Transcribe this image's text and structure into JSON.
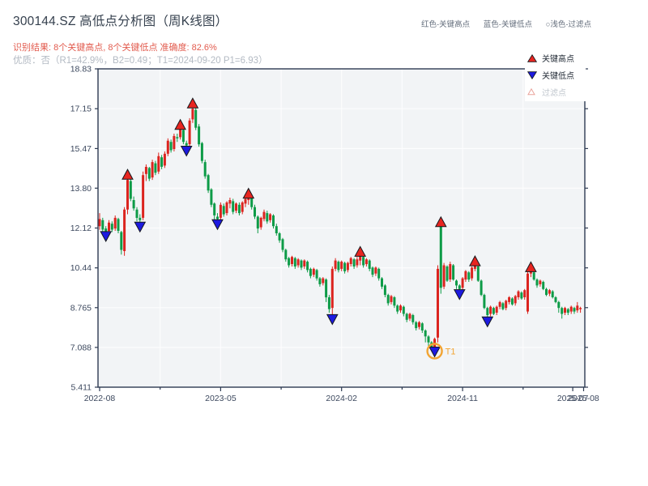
{
  "title": "300144.SZ 高低点分析图（周K线图）",
  "subtitle_result": "识别结果: 8个关键高点, 8个关键低点  准确度: 82.6%",
  "subtitle_quality": "优质：否（R1=42.9%，B2=0.49；T1=2024-09-20 P1=6.93）",
  "top_legend": {
    "high": "红色-关键高点",
    "low": "蓝色-关键低点",
    "filtered": "○浅色-过滤点"
  },
  "chart_legend": {
    "high": "关键高点",
    "low": "关键低点",
    "filtered": "过滤点"
  },
  "colors": {
    "up": "#db241f",
    "down": "#0d9b47",
    "key_high": "#e82520",
    "key_low": "#1d1ae0",
    "marker_edge": "#15181d",
    "filtered_edge": "#eaa49c",
    "t1": "#f2a433",
    "axis": "#2d3a52",
    "tick_label": "#3c485e",
    "plot_bg": "#f2f4f6",
    "grid": "#fdfdfe"
  },
  "chart_data": {
    "type": "candlestick",
    "title": "300144.SZ weekly K-line with key high/low detection",
    "x_unit": "week",
    "ylim": [
      5.411,
      18.83
    ],
    "y_ticks": [
      {
        "label": "18.83",
        "value": 18.83
      },
      {
        "label": "17.15",
        "value": 17.15
      },
      {
        "label": "15.47",
        "value": 15.47
      },
      {
        "label": "13.80",
        "value": 13.8
      },
      {
        "label": "12.12",
        "value": 12.12
      },
      {
        "label": "10.44",
        "value": 10.44
      },
      {
        "label": "8.765",
        "value": 8.765
      },
      {
        "label": "7.088",
        "value": 7.088
      },
      {
        "label": "5.411",
        "value": 5.411
      }
    ],
    "x_ticks": [
      {
        "label": "2022-08",
        "week": 0
      },
      {
        "label": "2023-05",
        "week": 39
      },
      {
        "label": "2024-02",
        "week": 78
      },
      {
        "label": "2024-11",
        "week": 117
      },
      {
        "label": "2025-07",
        "week": 152.5
      },
      {
        "label": "2025-08",
        "week": 156
      }
    ],
    "grid_weeks": [
      19.5,
      39,
      58.5,
      78,
      97.5,
      117,
      136.5
    ],
    "minor_tick_weeks": [
      19.5,
      58.5,
      97.5,
      136.5
    ],
    "candles": [
      [
        12.2,
        12.75,
        12.05,
        12.5
      ],
      [
        12.45,
        12.55,
        11.95,
        12.05
      ],
      [
        12.1,
        12.2,
        11.8,
        11.95
      ],
      [
        12.0,
        12.45,
        11.9,
        12.35
      ],
      [
        12.3,
        12.4,
        11.95,
        12.05
      ],
      [
        12.1,
        12.65,
        12.0,
        12.55
      ],
      [
        12.5,
        12.55,
        11.9,
        12.0
      ],
      [
        11.95,
        12.0,
        11.0,
        11.2
      ],
      [
        11.15,
        13.0,
        10.95,
        12.9
      ],
      [
        12.9,
        14.35,
        12.7,
        14.15
      ],
      [
        14.1,
        14.2,
        13.25,
        13.35
      ],
      [
        13.3,
        13.45,
        12.85,
        12.95
      ],
      [
        12.9,
        13.0,
        12.4,
        12.55
      ],
      [
        12.55,
        12.7,
        12.2,
        12.45
      ],
      [
        12.55,
        14.5,
        12.45,
        14.35
      ],
      [
        14.4,
        14.8,
        14.1,
        14.7
      ],
      [
        14.65,
        14.7,
        14.1,
        14.2
      ],
      [
        14.25,
        15.0,
        14.15,
        14.9
      ],
      [
        14.85,
        14.95,
        14.35,
        14.45
      ],
      [
        14.5,
        15.3,
        14.4,
        15.15
      ],
      [
        15.1,
        15.2,
        14.6,
        14.7
      ],
      [
        14.75,
        15.35,
        14.65,
        15.25
      ],
      [
        15.25,
        15.9,
        15.15,
        15.8
      ],
      [
        15.75,
        15.85,
        15.3,
        15.4
      ],
      [
        15.45,
        16.1,
        15.35,
        16.0
      ],
      [
        15.95,
        16.1,
        15.75,
        15.9
      ],
      [
        15.95,
        16.45,
        15.85,
        16.3
      ],
      [
        16.25,
        16.35,
        15.65,
        15.75
      ],
      [
        15.7,
        15.8,
        15.4,
        15.6
      ],
      [
        15.65,
        16.75,
        15.55,
        16.65
      ],
      [
        16.7,
        17.35,
        16.55,
        17.15
      ],
      [
        17.1,
        17.2,
        16.25,
        16.35
      ],
      [
        16.4,
        16.5,
        15.55,
        15.65
      ],
      [
        15.7,
        15.75,
        14.85,
        14.95
      ],
      [
        14.9,
        15.0,
        14.2,
        14.3
      ],
      [
        14.35,
        14.4,
        13.6,
        13.7
      ],
      [
        13.75,
        13.8,
        13.0,
        13.1
      ],
      [
        13.15,
        13.2,
        12.4,
        12.65
      ],
      [
        12.6,
        12.75,
        12.3,
        12.5
      ],
      [
        12.55,
        13.2,
        12.45,
        13.1
      ],
      [
        13.05,
        13.15,
        12.6,
        12.7
      ],
      [
        12.75,
        13.25,
        12.65,
        13.2
      ],
      [
        13.15,
        13.4,
        12.95,
        13.3
      ],
      [
        13.25,
        13.35,
        12.7,
        12.8
      ],
      [
        12.85,
        13.2,
        12.75,
        13.15
      ],
      [
        13.1,
        13.2,
        12.65,
        12.75
      ],
      [
        12.8,
        13.25,
        12.7,
        13.2
      ],
      [
        13.15,
        13.4,
        13.0,
        13.35
      ],
      [
        13.3,
        13.55,
        13.1,
        13.45
      ],
      [
        13.4,
        13.45,
        12.9,
        13.0
      ],
      [
        13.0,
        13.1,
        12.5,
        12.6
      ],
      [
        12.6,
        12.65,
        11.9,
        12.1
      ],
      [
        12.15,
        12.6,
        12.05,
        12.55
      ],
      [
        12.5,
        12.9,
        12.4,
        12.8
      ],
      [
        12.75,
        12.85,
        12.3,
        12.4
      ],
      [
        12.45,
        12.75,
        12.35,
        12.7
      ],
      [
        12.65,
        12.7,
        12.1,
        12.2
      ],
      [
        12.2,
        12.3,
        11.8,
        11.9
      ],
      [
        11.9,
        11.95,
        11.5,
        11.6
      ],
      [
        11.65,
        11.7,
        11.1,
        11.2
      ],
      [
        11.2,
        11.25,
        10.7,
        10.8
      ],
      [
        10.85,
        10.9,
        10.45,
        10.55
      ],
      [
        10.6,
        10.95,
        10.5,
        10.9
      ],
      [
        10.85,
        10.9,
        10.4,
        10.5
      ],
      [
        10.55,
        10.85,
        10.45,
        10.8
      ],
      [
        10.75,
        10.8,
        10.35,
        10.45
      ],
      [
        10.5,
        10.8,
        10.4,
        10.75
      ],
      [
        10.7,
        10.75,
        10.25,
        10.35
      ],
      [
        10.4,
        10.45,
        10.0,
        10.1
      ],
      [
        10.15,
        10.45,
        10.05,
        10.4
      ],
      [
        10.35,
        10.4,
        9.9,
        10.0
      ],
      [
        10.0,
        10.05,
        9.65,
        9.75
      ],
      [
        9.8,
        10.05,
        9.7,
        10.0
      ],
      [
        9.95,
        10.0,
        9.0,
        9.2
      ],
      [
        9.2,
        9.3,
        8.55,
        8.7
      ],
      [
        8.75,
        10.5,
        8.3,
        10.4
      ],
      [
        10.4,
        10.85,
        10.3,
        10.75
      ],
      [
        10.7,
        10.75,
        10.25,
        10.35
      ],
      [
        10.4,
        10.75,
        10.3,
        10.7
      ],
      [
        10.65,
        10.7,
        10.2,
        10.3
      ],
      [
        10.35,
        10.7,
        10.25,
        10.65
      ],
      [
        10.6,
        10.9,
        10.5,
        10.85
      ],
      [
        10.8,
        10.85,
        10.4,
        10.5
      ],
      [
        10.55,
        10.9,
        10.45,
        10.8
      ],
      [
        10.75,
        11.1,
        10.55,
        10.95
      ],
      [
        10.9,
        10.95,
        10.45,
        10.55
      ],
      [
        10.6,
        10.85,
        10.5,
        10.8
      ],
      [
        10.75,
        10.8,
        10.3,
        10.4
      ],
      [
        10.45,
        10.5,
        10.05,
        10.15
      ],
      [
        10.2,
        10.5,
        10.1,
        10.45
      ],
      [
        10.4,
        10.45,
        9.9,
        10.0
      ],
      [
        10.0,
        10.05,
        9.55,
        9.65
      ],
      [
        9.7,
        9.75,
        9.2,
        9.3
      ],
      [
        9.3,
        9.35,
        8.85,
        8.95
      ],
      [
        9.0,
        9.3,
        8.9,
        9.25
      ],
      [
        9.2,
        9.25,
        8.75,
        8.85
      ],
      [
        8.85,
        8.9,
        8.5,
        8.6
      ],
      [
        8.65,
        8.9,
        8.55,
        8.85
      ],
      [
        8.8,
        8.85,
        8.4,
        8.5
      ],
      [
        8.5,
        8.55,
        8.15,
        8.25
      ],
      [
        8.3,
        8.55,
        8.2,
        8.5
      ],
      [
        8.45,
        8.5,
        8.05,
        8.15
      ],
      [
        8.15,
        8.2,
        7.8,
        7.9
      ],
      [
        7.95,
        8.2,
        7.85,
        8.15
      ],
      [
        8.1,
        8.15,
        7.7,
        7.8
      ],
      [
        7.8,
        7.85,
        7.3,
        7.55
      ],
      [
        7.55,
        7.6,
        7.15,
        7.3
      ],
      [
        7.3,
        7.35,
        6.95,
        7.1
      ],
      [
        7.1,
        7.5,
        6.93,
        7.45
      ],
      [
        7.5,
        10.55,
        7.3,
        10.4
      ],
      [
        12.2,
        12.35,
        9.35,
        9.6
      ],
      [
        9.65,
        10.65,
        9.55,
        10.55
      ],
      [
        10.5,
        10.55,
        9.85,
        9.9
      ],
      [
        9.95,
        10.7,
        9.85,
        10.6
      ],
      [
        10.55,
        10.6,
        9.9,
        9.95
      ],
      [
        9.9,
        9.95,
        9.55,
        9.7
      ],
      [
        9.7,
        9.75,
        9.35,
        9.55
      ],
      [
        9.6,
        10.05,
        9.5,
        10.0
      ],
      [
        9.95,
        10.35,
        9.85,
        10.3
      ],
      [
        10.25,
        10.3,
        9.85,
        9.95
      ],
      [
        10.0,
        10.5,
        9.9,
        10.45
      ],
      [
        10.4,
        10.7,
        10.3,
        10.55
      ],
      [
        10.5,
        10.55,
        9.85,
        9.9
      ],
      [
        9.9,
        9.95,
        9.25,
        9.3
      ],
      [
        9.3,
        9.35,
        8.7,
        8.75
      ],
      [
        8.75,
        8.8,
        8.2,
        8.45
      ],
      [
        8.5,
        8.85,
        8.4,
        8.8
      ],
      [
        8.75,
        8.8,
        8.45,
        8.5
      ],
      [
        8.55,
        8.85,
        8.45,
        8.8
      ],
      [
        8.8,
        9.05,
        8.7,
        9.0
      ],
      [
        8.95,
        9.0,
        8.65,
        8.7
      ],
      [
        8.75,
        9.1,
        8.65,
        9.05
      ],
      [
        9.0,
        9.25,
        8.9,
        9.2
      ],
      [
        9.15,
        9.2,
        8.85,
        8.9
      ],
      [
        8.95,
        9.3,
        8.85,
        9.25
      ],
      [
        9.2,
        9.5,
        9.1,
        9.45
      ],
      [
        9.4,
        9.45,
        9.1,
        9.15
      ],
      [
        9.2,
        9.55,
        9.1,
        9.5
      ],
      [
        8.6,
        10.35,
        8.5,
        10.2
      ],
      [
        10.2,
        10.45,
        10.05,
        10.3
      ],
      [
        10.25,
        10.3,
        9.9,
        9.95
      ],
      [
        9.95,
        10.0,
        9.6,
        9.7
      ],
      [
        9.75,
        9.95,
        9.65,
        9.9
      ],
      [
        9.85,
        9.9,
        9.5,
        9.55
      ],
      [
        9.55,
        9.6,
        9.25,
        9.3
      ],
      [
        9.35,
        9.55,
        9.25,
        9.5
      ],
      [
        9.45,
        9.5,
        9.15,
        9.2
      ],
      [
        9.2,
        9.25,
        8.95,
        9.0
      ],
      [
        9.0,
        9.05,
        8.55,
        8.75
      ],
      [
        8.75,
        8.8,
        8.3,
        8.5
      ],
      [
        8.55,
        8.8,
        8.45,
        8.75
      ],
      [
        8.7,
        8.75,
        8.45,
        8.55
      ],
      [
        8.6,
        8.85,
        8.5,
        8.8
      ],
      [
        8.75,
        8.8,
        8.5,
        8.6
      ],
      [
        8.65,
        9.0,
        8.55,
        8.85
      ],
      [
        8.7,
        8.8,
        8.55,
        8.75
      ]
    ],
    "key_highs": [
      {
        "week": 9,
        "price": 14.35
      },
      {
        "week": 26,
        "price": 16.45
      },
      {
        "week": 30,
        "price": 17.35
      },
      {
        "week": 48,
        "price": 13.55
      },
      {
        "week": 84,
        "price": 11.1
      },
      {
        "week": 110,
        "price": 12.35
      },
      {
        "week": 121,
        "price": 10.7
      },
      {
        "week": 139,
        "price": 10.45
      }
    ],
    "key_lows": [
      {
        "week": 2,
        "price": 11.8
      },
      {
        "week": 13,
        "price": 12.2
      },
      {
        "week": 28,
        "price": 15.4
      },
      {
        "week": 38,
        "price": 12.3
      },
      {
        "week": 75,
        "price": 8.3
      },
      {
        "week": 108,
        "price": 6.93
      },
      {
        "week": 116,
        "price": 9.35
      },
      {
        "week": 125,
        "price": 8.2
      }
    ],
    "t1": {
      "label": "T1",
      "week": 108,
      "price": 6.93,
      "date": "2024-09-20"
    }
  }
}
